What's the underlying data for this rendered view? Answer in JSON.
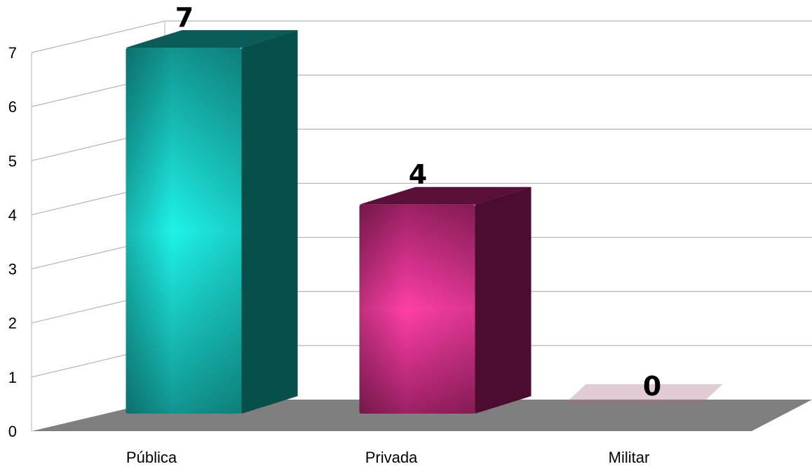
{
  "chart_data": {
    "type": "bar",
    "style": "3d-column",
    "categories": [
      "Pública",
      "Privada",
      "Militar"
    ],
    "values": [
      7,
      4,
      0
    ],
    "value_labels": [
      "7",
      "4",
      "0"
    ],
    "ylim": [
      0,
      7
    ],
    "yticks": [
      "0",
      "1",
      "2",
      "3",
      "4",
      "5",
      "6",
      "7"
    ],
    "title": "",
    "xlabel": "",
    "ylabel": "",
    "grid": true,
    "legend": "none",
    "bar_colors": [
      {
        "light": "#1ef2e8",
        "mid": "#119590",
        "dark": "#0a5c58",
        "side": "#063f3c"
      },
      {
        "light": "#ff3fa6",
        "mid": "#9c2064",
        "dark": "#5a0f38",
        "side": "#3a0924"
      },
      {
        "light": "#a86a8a",
        "mid": "#7d6c75",
        "dark": "#6b6b6b",
        "side": "#5e5e5e"
      }
    ],
    "floor_color": "#7f7f7f",
    "gridline_color": "#b3b3b3"
  }
}
